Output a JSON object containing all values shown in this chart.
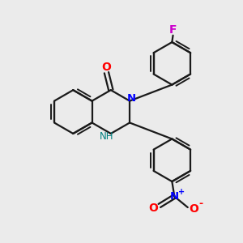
{
  "background_color": "#ebebeb",
  "bond_color": "#1a1a1a",
  "N_color": "#0000ff",
  "O_color": "#ff0000",
  "F_color": "#cc00cc",
  "NH_color": "#008080",
  "figsize": [
    3.0,
    3.0
  ],
  "dpi": 100,
  "xlim": [
    0,
    10
  ],
  "ylim": [
    0,
    10
  ]
}
